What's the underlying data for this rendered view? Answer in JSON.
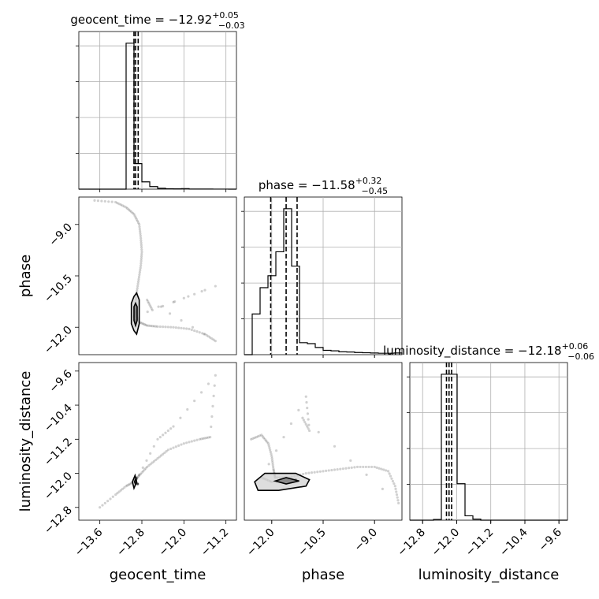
{
  "chart_data": {
    "type": "scatter",
    "title": "",
    "parameters": [
      {
        "key": "geocent_time",
        "axis_label": "geocent_time",
        "range": [
          -14.0,
          -11.0
        ],
        "ticks": [
          -13.6,
          -12.8,
          -12.0,
          -11.2
        ],
        "tick_labels": [
          "−13.6",
          "−12.8",
          "−12.0",
          "−11.2"
        ],
        "title": {
          "name": "geocent_time",
          "median": "−12.92",
          "upper": "+0.05",
          "lower": "−0.03"
        },
        "quantiles": [
          -12.95,
          -12.92,
          -12.87
        ]
      },
      {
        "key": "phase",
        "axis_label": "phase",
        "range": [
          -12.8,
          -8.2
        ],
        "ticks": [
          -12.0,
          -10.5,
          -9.0
        ],
        "tick_labels": [
          "−12.0",
          "−10.5",
          "−9.0"
        ],
        "title": {
          "name": "phase",
          "median": "−11.58",
          "upper": "+0.32",
          "lower": "−0.45"
        },
        "quantiles": [
          -12.03,
          -11.58,
          -11.26
        ]
      },
      {
        "key": "luminosity_distance",
        "axis_label": "luminosity_distance",
        "range": [
          -13.1,
          -9.4
        ],
        "ticks": [
          -12.8,
          -12.0,
          -11.2,
          -10.4,
          -9.6
        ],
        "tick_labels": [
          "−12.8",
          "−12.0",
          "−11.2",
          "−10.4",
          "−9.6"
        ],
        "title": {
          "name": "luminosity_distance",
          "median": "−12.18",
          "upper": "+0.06",
          "lower": "−0.06"
        },
        "quantiles": [
          -12.24,
          -12.18,
          -12.12
        ]
      }
    ],
    "histograms": {
      "geocent_time": {
        "edges": [
          -14.0,
          -13.85,
          -13.7,
          -13.55,
          -13.4,
          -13.25,
          -13.1,
          -12.95,
          -12.8,
          -12.65,
          -12.5,
          -12.35,
          -12.2,
          -12.05,
          -11.9,
          -11.75,
          -11.6,
          -11.45,
          -11.3,
          -11.15,
          -11.0
        ],
        "counts": [
          0,
          0,
          0,
          0,
          0,
          0,
          4000,
          700,
          200,
          70,
          25,
          12,
          8,
          15,
          3,
          2,
          2,
          1,
          1,
          0
        ]
      },
      "phase": {
        "edges": [
          -12.8,
          -12.57,
          -12.34,
          -12.11,
          -11.88,
          -11.65,
          -11.42,
          -11.19,
          -10.96,
          -10.73,
          -10.5,
          -10.27,
          -10.04,
          -9.81,
          -9.58,
          -9.35,
          -9.12,
          -8.89,
          -8.66,
          -8.43,
          -8.2
        ],
        "counts": [
          0,
          850,
          1400,
          1650,
          2150,
          3050,
          1850,
          250,
          230,
          150,
          90,
          80,
          60,
          55,
          45,
          40,
          35,
          30,
          30,
          35
        ]
      },
      "luminosity_distance": {
        "edges": [
          -13.1,
          -12.915,
          -12.73,
          -12.545,
          -12.36,
          -12.175,
          -11.99,
          -11.805,
          -11.62,
          -11.435,
          -11.25,
          -11.065,
          -10.88,
          -10.695,
          -10.51,
          -10.325,
          -10.14,
          -9.955,
          -9.77,
          -9.585,
          -9.4
        ],
        "counts": [
          0,
          0,
          0,
          20,
          4000,
          4000,
          1000,
          120,
          30,
          0,
          0,
          0,
          0,
          0,
          0,
          0,
          0,
          0,
          0,
          0
        ]
      }
    },
    "pairs": [
      {
        "x": "geocent_time",
        "y": "phase",
        "points": [
          [
            -13.7,
            -8.3
          ],
          [
            -13.3,
            -8.35
          ],
          [
            -13.1,
            -8.5
          ],
          [
            -12.95,
            -8.7
          ],
          [
            -12.85,
            -9.0
          ],
          [
            -12.82,
            -9.4
          ],
          [
            -12.8,
            -9.8
          ],
          [
            -12.82,
            -10.2
          ],
          [
            -12.86,
            -10.6
          ],
          [
            -12.9,
            -11.0
          ],
          [
            -12.93,
            -11.4
          ],
          [
            -12.92,
            -11.6
          ],
          [
            -12.85,
            -11.85
          ],
          [
            -12.7,
            -11.95
          ],
          [
            -12.5,
            -11.98
          ],
          [
            -12.2,
            -12.0
          ],
          [
            -11.9,
            -12.05
          ],
          [
            -11.6,
            -12.2
          ],
          [
            -11.4,
            -12.4
          ],
          [
            -12.7,
            -11.2
          ],
          [
            -12.6,
            -11.5
          ],
          [
            -11.4,
            -10.8
          ],
          [
            -12.95,
            -11.7
          ],
          [
            -12.91,
            -11.5
          ],
          [
            -12.93,
            -11.8
          ]
        ],
        "contours": [
          {
            "level": 1,
            "path": [
              [
                -13.0,
                -11.9
              ],
              [
                -12.95,
                -12.1
              ],
              [
                -12.9,
                -12.2
              ],
              [
                -12.85,
                -11.9
              ],
              [
                -12.85,
                -11.2
              ],
              [
                -12.9,
                -11.0
              ],
              [
                -12.95,
                -11.1
              ],
              [
                -13.0,
                -11.3
              ],
              [
                -13.0,
                -11.9
              ]
            ]
          },
          {
            "level": 2,
            "path": [
              [
                -12.95,
                -11.8
              ],
              [
                -12.92,
                -11.95
              ],
              [
                -12.89,
                -11.8
              ],
              [
                -12.89,
                -11.4
              ],
              [
                -12.92,
                -11.3
              ],
              [
                -12.95,
                -11.4
              ],
              [
                -12.95,
                -11.8
              ]
            ]
          }
        ]
      },
      {
        "x": "geocent_time",
        "y": "luminosity_distance",
        "points": [
          [
            -13.6,
            -12.8
          ],
          [
            -13.3,
            -12.5
          ],
          [
            -13.1,
            -12.3
          ],
          [
            -12.95,
            -12.2
          ],
          [
            -12.85,
            -12.05
          ],
          [
            -12.7,
            -11.85
          ],
          [
            -12.5,
            -11.65
          ],
          [
            -12.3,
            -11.45
          ],
          [
            -12.0,
            -11.3
          ],
          [
            -11.7,
            -11.2
          ],
          [
            -11.5,
            -11.15
          ],
          [
            -11.4,
            -9.7
          ],
          [
            -12.2,
            -10.9
          ],
          [
            -12.5,
            -11.2
          ],
          [
            -12.92,
            -12.2
          ],
          [
            -12.9,
            -12.1
          ],
          [
            -12.95,
            -12.15
          ],
          [
            -12.88,
            -12.25
          ]
        ],
        "contours": [
          {
            "level": 1,
            "path": [
              [
                -12.98,
                -12.2
              ],
              [
                -12.95,
                -12.35
              ],
              [
                -12.9,
                -12.2
              ],
              [
                -12.93,
                -12.05
              ],
              [
                -12.98,
                -12.2
              ]
            ]
          },
          {
            "level": 2,
            "path": [
              [
                -12.94,
                -12.2
              ],
              [
                -12.92,
                -12.26
              ],
              [
                -12.9,
                -12.2
              ],
              [
                -12.92,
                -12.14
              ],
              [
                -12.94,
                -12.2
              ]
            ]
          }
        ]
      },
      {
        "x": "phase",
        "y": "luminosity_distance",
        "points": [
          [
            -12.6,
            -11.2
          ],
          [
            -12.3,
            -11.1
          ],
          [
            -12.1,
            -11.3
          ],
          [
            -12.0,
            -11.6
          ],
          [
            -11.95,
            -11.9
          ],
          [
            -11.9,
            -12.1
          ],
          [
            -11.5,
            -12.1
          ],
          [
            -11.0,
            -12.0
          ],
          [
            -10.5,
            -11.95
          ],
          [
            -10.0,
            -11.9
          ],
          [
            -9.5,
            -11.85
          ],
          [
            -9.0,
            -11.85
          ],
          [
            -8.6,
            -11.95
          ],
          [
            -8.4,
            -12.3
          ],
          [
            -8.3,
            -12.7
          ],
          [
            -11.1,
            -10.7
          ],
          [
            -10.9,
            -11.0
          ],
          [
            -11.0,
            -10.2
          ],
          [
            -12.3,
            -12.1
          ],
          [
            -12.0,
            -12.2
          ],
          [
            -11.58,
            -12.18
          ],
          [
            -11.3,
            -12.15
          ]
        ],
        "contours": [
          {
            "level": 1,
            "path": [
              [
                -12.5,
                -12.2
              ],
              [
                -12.4,
                -12.4
              ],
              [
                -11.8,
                -12.4
              ],
              [
                -11.0,
                -12.3
              ],
              [
                -10.9,
                -12.15
              ],
              [
                -11.3,
                -12.0
              ],
              [
                -12.2,
                -12.0
              ],
              [
                -12.5,
                -12.2
              ]
            ]
          },
          {
            "level": 2,
            "path": [
              [
                -11.9,
                -12.18
              ],
              [
                -11.58,
                -12.25
              ],
              [
                -11.2,
                -12.18
              ],
              [
                -11.58,
                -12.1
              ],
              [
                -11.9,
                -12.18
              ]
            ]
          }
        ]
      }
    ]
  }
}
